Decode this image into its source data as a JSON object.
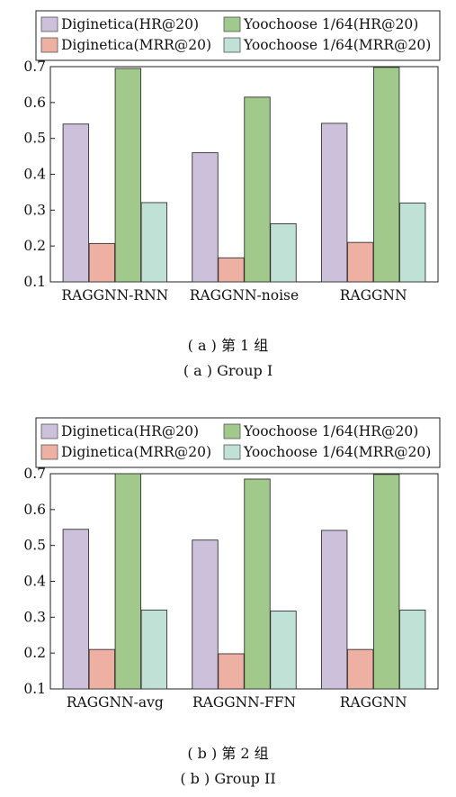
{
  "colors": {
    "diginetica_hr": "#cdc0da",
    "diginetica_mrr": "#efb0a4",
    "yoochoose_hr": "#a2c98c",
    "yoochoose_mrr": "#bfe1d6"
  },
  "legend": [
    "Diginetica(HR@20)",
    "Yoochoose 1/64(HR@20)",
    "Diginetica(MRR@20)",
    "Yoochoose 1/64(MRR@20)"
  ],
  "chart_data": [
    {
      "type": "bar",
      "categories": [
        "RAGGNN-RNN",
        "RAGGNN-noise",
        "RAGGNN"
      ],
      "series": [
        {
          "name": "Diginetica(HR@20)",
          "values": [
            0.54,
            0.46,
            0.542
          ]
        },
        {
          "name": "Diginetica(MRR@20)",
          "values": [
            0.207,
            0.167,
            0.21
          ]
        },
        {
          "name": "Yoochoose 1/64(HR@20)",
          "values": [
            0.695,
            0.615,
            0.698
          ]
        },
        {
          "name": "Yoochoose 1/64(MRR@20)",
          "values": [
            0.321,
            0.262,
            0.32
          ]
        }
      ],
      "ylim": [
        0.1,
        0.7
      ],
      "yticks": [
        "0.1",
        "0.2",
        "0.3",
        "0.4",
        "0.5",
        "0.6",
        "0.7"
      ],
      "legend_position": "top",
      "caption_cn": "( a ) 第 1 组",
      "caption_en": "( a ) Group I"
    },
    {
      "type": "bar",
      "categories": [
        "RAGGNN-avg",
        "RAGGNN-FFN",
        "RAGGNN"
      ],
      "series": [
        {
          "name": "Diginetica(HR@20)",
          "values": [
            0.545,
            0.515,
            0.542
          ]
        },
        {
          "name": "Diginetica(MRR@20)",
          "values": [
            0.21,
            0.198,
            0.21
          ]
        },
        {
          "name": "Yoochoose 1/64(HR@20)",
          "values": [
            0.7,
            0.685,
            0.698
          ]
        },
        {
          "name": "Yoochoose 1/64(MRR@20)",
          "values": [
            0.32,
            0.317,
            0.32
          ]
        }
      ],
      "ylim": [
        0.1,
        0.7
      ],
      "yticks": [
        "0.1",
        "0.2",
        "0.3",
        "0.4",
        "0.5",
        "0.6",
        "0.7"
      ],
      "legend_position": "top",
      "caption_cn": "( b ) 第 2 组",
      "caption_en": "( b ) Group II"
    }
  ]
}
